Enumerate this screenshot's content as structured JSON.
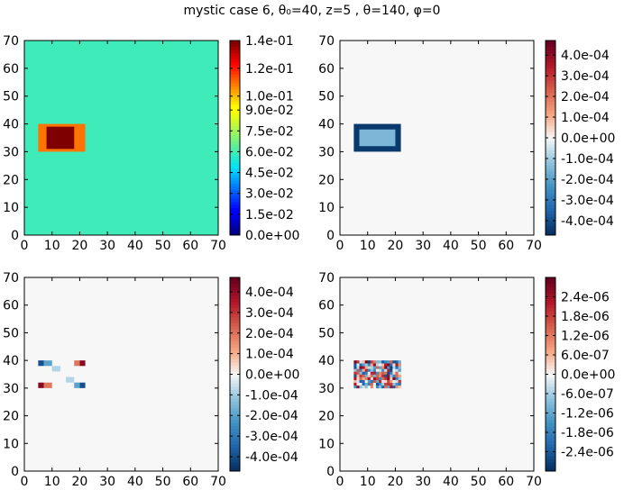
{
  "figure": {
    "title": "mystic case 6, θ₀=40, z=5 , θ=140, φ=0"
  },
  "chart_data": [
    {
      "type": "heatmap",
      "name": "radiance",
      "colormap": "jet",
      "xlim": [
        0,
        70
      ],
      "ylim": [
        0,
        70
      ],
      "xticks": [
        0,
        10,
        20,
        30,
        40,
        50,
        60,
        70
      ],
      "yticks": [
        0,
        10,
        20,
        30,
        40,
        50,
        60,
        70
      ],
      "xtick_labels": [
        "0",
        "10",
        "20",
        "30",
        "40",
        "50",
        "60",
        "70"
      ],
      "ytick_labels": [
        "0",
        "10",
        "20",
        "30",
        "40",
        "50",
        "60",
        "70"
      ],
      "background_value": 0.059,
      "features": [
        {
          "kind": "rect",
          "x": [
            5,
            22
          ],
          "y": [
            30,
            40
          ],
          "value": 0.11
        },
        {
          "kind": "rect",
          "x": [
            8,
            18
          ],
          "y": [
            31,
            39
          ],
          "value": 0.14
        }
      ],
      "vmin": 0.0,
      "vmax": 0.14,
      "colorbar_ticks": [
        0.0,
        0.015,
        0.03,
        0.045,
        0.06,
        0.075,
        0.09,
        0.1,
        0.12,
        0.14
      ],
      "colorbar_labels": [
        "0.0e+00",
        "1.5e-02",
        "3.0e-02",
        "4.5e-02",
        "6.0e-02",
        "7.5e-02",
        "9.0e-02",
        "1.0e-01",
        "1.2e-01",
        "1.4e-01"
      ]
    },
    {
      "type": "heatmap",
      "name": "difference-1",
      "colormap": "RdBu_r",
      "xlim": [
        0,
        70
      ],
      "ylim": [
        0,
        70
      ],
      "xticks": [
        0,
        10,
        20,
        30,
        40,
        50,
        60,
        70
      ],
      "yticks": [
        0,
        10,
        20,
        30,
        40,
        50,
        60,
        70
      ],
      "xtick_labels": [
        "0",
        "10",
        "20",
        "30",
        "40",
        "50",
        "60",
        "70"
      ],
      "ytick_labels": [
        "0",
        "10",
        "20",
        "30",
        "40",
        "50",
        "60",
        "70"
      ],
      "background_value": 0.0,
      "features": [
        {
          "kind": "rect",
          "x": [
            5,
            22
          ],
          "y": [
            30,
            40
          ],
          "value": -0.00045
        },
        {
          "kind": "rect",
          "x": [
            7,
            20
          ],
          "y": [
            32,
            38
          ],
          "value": -0.00015
        }
      ],
      "vmin": -0.00047,
      "vmax": 0.00047,
      "colorbar_ticks": [
        -0.0004,
        -0.0003,
        -0.0002,
        -0.0001,
        0.0,
        0.0001,
        0.0002,
        0.0003,
        0.0004
      ],
      "colorbar_labels": [
        "-4.0e-04",
        "-3.0e-04",
        "-2.0e-04",
        "-1.0e-04",
        "0.0e+00",
        "1.0e-04",
        "2.0e-04",
        "3.0e-04",
        "4.0e-04"
      ]
    },
    {
      "type": "heatmap",
      "name": "difference-2",
      "colormap": "RdBu_r",
      "xlim": [
        0,
        70
      ],
      "ylim": [
        0,
        70
      ],
      "xticks": [
        0,
        10,
        20,
        30,
        40,
        50,
        60,
        70
      ],
      "yticks": [
        0,
        10,
        20,
        30,
        40,
        50,
        60,
        70
      ],
      "xtick_labels": [
        "0",
        "10",
        "20",
        "30",
        "40",
        "50",
        "60",
        "70"
      ],
      "ytick_labels": [
        "0",
        "10",
        "20",
        "30",
        "40",
        "50",
        "60",
        "70"
      ],
      "background_value": 0.0,
      "features": [
        {
          "kind": "cell",
          "x": [
            5,
            7
          ],
          "y": [
            38,
            40
          ],
          "value": -0.0004
        },
        {
          "kind": "cell",
          "x": [
            7,
            10
          ],
          "y": [
            38,
            40
          ],
          "value": -0.0002
        },
        {
          "kind": "cell",
          "x": [
            18,
            20
          ],
          "y": [
            38,
            40
          ],
          "value": 0.0002
        },
        {
          "kind": "cell",
          "x": [
            20,
            22
          ],
          "y": [
            38,
            40
          ],
          "value": 0.00042
        },
        {
          "kind": "cell",
          "x": [
            5,
            7
          ],
          "y": [
            30,
            32
          ],
          "value": 0.00042
        },
        {
          "kind": "cell",
          "x": [
            7,
            10
          ],
          "y": [
            30,
            32
          ],
          "value": 0.0002
        },
        {
          "kind": "cell",
          "x": [
            18,
            20
          ],
          "y": [
            30,
            32
          ],
          "value": -0.0002
        },
        {
          "kind": "cell",
          "x": [
            20,
            22
          ],
          "y": [
            30,
            32
          ],
          "value": -0.0004
        },
        {
          "kind": "cell",
          "x": [
            10,
            13
          ],
          "y": [
            36,
            38
          ],
          "value": -8e-05
        },
        {
          "kind": "cell",
          "x": [
            15,
            18
          ],
          "y": [
            32,
            34
          ],
          "value": -8e-05
        }
      ],
      "vmin": -0.00047,
      "vmax": 0.00047,
      "colorbar_ticks": [
        -0.0004,
        -0.0003,
        -0.0002,
        -0.0001,
        0.0,
        0.0001,
        0.0002,
        0.0003,
        0.0004
      ],
      "colorbar_labels": [
        "-4.0e-04",
        "-3.0e-04",
        "-2.0e-04",
        "-1.0e-04",
        "0.0e+00",
        "1.0e-04",
        "2.0e-04",
        "3.0e-04",
        "4.0e-04"
      ]
    },
    {
      "type": "heatmap",
      "name": "difference-3",
      "colormap": "RdBu_r",
      "xlim": [
        0,
        70
      ],
      "ylim": [
        0,
        70
      ],
      "xticks": [
        0,
        10,
        20,
        30,
        40,
        50,
        60,
        70
      ],
      "yticks": [
        0,
        10,
        20,
        30,
        40,
        50,
        60,
        70
      ],
      "xtick_labels": [
        "0",
        "10",
        "20",
        "30",
        "40",
        "50",
        "60",
        "70"
      ],
      "ytick_labels": [
        "0",
        "10",
        "20",
        "30",
        "40",
        "50",
        "60",
        "70"
      ],
      "background_value": 0.0,
      "noise_region": {
        "x": [
          5,
          22
        ],
        "y": [
          30,
          40
        ],
        "cell_size": 1,
        "amplitude": 2.8e-06,
        "seed": 7
      },
      "vmin": -3e-06,
      "vmax": 3e-06,
      "colorbar_ticks": [
        -2.4e-06,
        -1.8e-06,
        -1.2e-06,
        -6e-07,
        0.0,
        6e-07,
        1.2e-06,
        1.8e-06,
        2.4e-06
      ],
      "colorbar_labels": [
        "-2.4e-06",
        "-1.8e-06",
        "-1.2e-06",
        "-6.0e-07",
        "0.0e+00",
        "6.0e-07",
        "1.2e-06",
        "1.8e-06",
        "2.4e-06"
      ]
    }
  ]
}
